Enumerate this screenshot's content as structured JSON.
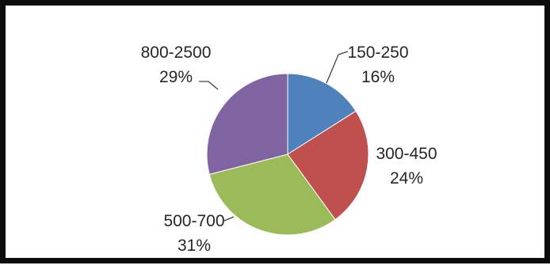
{
  "chart_data": {
    "type": "pie",
    "title": "",
    "start_angle_deg": 0,
    "direction": "clockwise",
    "legend": "none",
    "slices": [
      {
        "category": "150-250",
        "percent_label": "16%",
        "value": 16,
        "color": "#4f81bd"
      },
      {
        "category": "300-450",
        "percent_label": "24%",
        "value": 24,
        "color": "#c0504d"
      },
      {
        "category": "500-700",
        "percent_label": "31%",
        "value": 31,
        "color": "#9bbb59"
      },
      {
        "category": "800-2500",
        "percent_label": "29%",
        "value": 29,
        "color": "#8064a2"
      }
    ]
  }
}
